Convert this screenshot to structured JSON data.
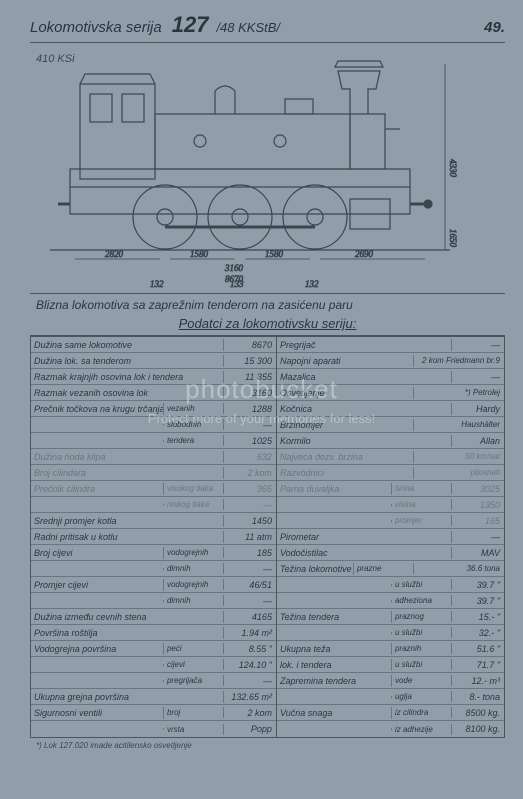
{
  "header": {
    "title": "Lokomotivska serija",
    "number": "127",
    "sub": "/48 KKStB/",
    "page": "49."
  },
  "drawing": {
    "model": "410 KSi",
    "dims": {
      "d1": "2820",
      "d2": "1580",
      "d3": "1580",
      "d4": "2690",
      "total_mid": "3160",
      "total_bot": "8670",
      "h1": "132",
      "h2": "133",
      "h3": "132",
      "height_r": "4330",
      "height_r2": "1650"
    }
  },
  "caption": "Blizna lokomotiva sa zaprežnim tenderom na zasićenu paru",
  "subtitle": "Podatci za lokomotivsku seriju:",
  "left": [
    {
      "l": "Dužina same lokomotive",
      "v": "8670"
    },
    {
      "l": "Dužina lok. sa tenderom",
      "v": "15 300"
    },
    {
      "l": "Razmak krajnjih osovina lok i tendera",
      "v": "11 355"
    },
    {
      "l": "Razmak vezanih osovina lok",
      "v": "3160"
    },
    {
      "l": "Prečnik točkova na krugu trčanja",
      "s": "vezanih",
      "v": "1288"
    },
    {
      "l": "",
      "s": "slobodnih",
      "v": "—"
    },
    {
      "l": "",
      "s": "tendera",
      "v": "1025"
    },
    {
      "l": "Dužina hoda klipa",
      "v": "632",
      "faded": true
    },
    {
      "l": "Broj cilindara",
      "v": "2 kom",
      "faded": true
    },
    {
      "l": "Prečnik cilindra",
      "s": "visokog tlaka",
      "v": "365",
      "faded": true
    },
    {
      "l": "",
      "s": "niskog tlaka",
      "v": "—",
      "faded": true
    },
    {
      "l": "Srednji promjer kotla",
      "v": "1450"
    },
    {
      "l": "Radni pritisak u kotlu",
      "v": "11 atm"
    },
    {
      "l": "Broj cijevi",
      "s": "vodogrejnih",
      "v": "185"
    },
    {
      "l": "",
      "s": "dimnih",
      "v": "—"
    },
    {
      "l": "Promjer cijevi",
      "s": "vodogrejnih",
      "v": "46/51"
    },
    {
      "l": "",
      "s": "dimnih",
      "v": "—"
    },
    {
      "l": "Dužina između cevnih stena",
      "v": "4165"
    },
    {
      "l": "Površina roštilja",
      "v": "1.94 m²"
    },
    {
      "l": "Vodogrejna površina",
      "s": "peći",
      "v": "8.55 \""
    },
    {
      "l": "",
      "s": "cijevi",
      "v": "124.10 \""
    },
    {
      "l": "",
      "s": "pregrijača",
      "v": "—"
    },
    {
      "l": "Ukupna grejna površina",
      "v": "132.65 m²"
    },
    {
      "l": "Sigurnosni ventili",
      "s": "broj",
      "v": "2 kom"
    },
    {
      "l": "",
      "s": "vrsta",
      "v": "Popp"
    }
  ],
  "right": [
    {
      "l": "Pregrijač",
      "v": "—"
    },
    {
      "l": "Napojni aparati",
      "v": "2 kom Friedmann br.9"
    },
    {
      "l": "Mazalica",
      "v": "—"
    },
    {
      "l": "Osvetljenje",
      "v": "*) Petrolej"
    },
    {
      "l": "Kočnica",
      "v": "Hardy"
    },
    {
      "l": "Brzinomjer",
      "v": "Haushälter"
    },
    {
      "l": "Kormilo",
      "v": "Allan"
    },
    {
      "l": "Najveća dozv. brzina",
      "v": "50 km/sat",
      "faded": true
    },
    {
      "l": "Razvodnici",
      "v": "pljosnati",
      "faded": true
    },
    {
      "l": "Parna duvaljka",
      "s": "širina",
      "v": "3025",
      "faded": true
    },
    {
      "l": "",
      "s": "visina",
      "v": "1350",
      "faded": true
    },
    {
      "l": "",
      "s": "promjer",
      "v": "165",
      "faded": true
    },
    {
      "l": "Pirometar",
      "v": "—"
    },
    {
      "l": "Vodočistilac",
      "v": "MAV"
    },
    {
      "l": "Težina lokomotive",
      "s": "prazne",
      "v": "36.6 tona"
    },
    {
      "l": "",
      "s": "u službi",
      "v": "39.7 \""
    },
    {
      "l": "",
      "s": "adheziona",
      "v": "39.7 \""
    },
    {
      "l": "Težina tendera",
      "s": "praznog",
      "v": "15.- \""
    },
    {
      "l": "",
      "s": "u službi",
      "v": "32.- \""
    },
    {
      "l": "Ukupna teža",
      "s": "praznih",
      "v": "51.6 \""
    },
    {
      "l": "lok. i tendera",
      "s": "u službi",
      "v": "71.7 \""
    },
    {
      "l": "Zapremina tendera",
      "s": "vode",
      "v": "12.- m³"
    },
    {
      "l": "",
      "s": "uglja",
      "v": "8.- tona"
    },
    {
      "l": "Vučna snaga",
      "s": "iz cilindra",
      "v": "8500 kg."
    },
    {
      "l": "",
      "s": "iz adhezije",
      "v": "8100 kg."
    }
  ],
  "footnote": "*) Lok 127.020 imade acitilensko osvetljenje",
  "watermark": {
    "logo": "photobucket",
    "tag": "Protect more of your memories for less!"
  }
}
